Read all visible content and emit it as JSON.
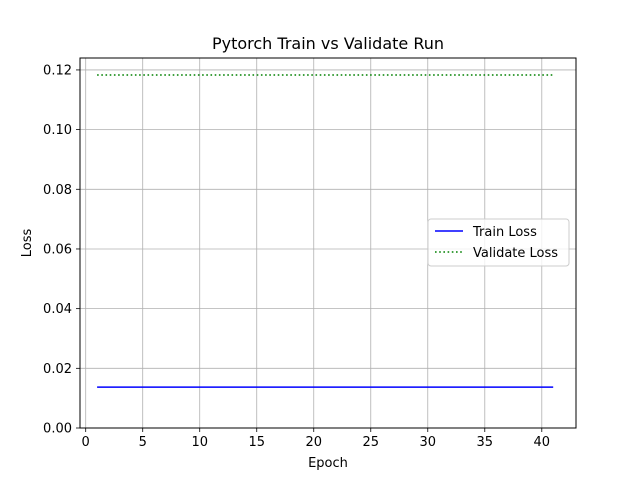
{
  "chart_data": {
    "type": "line",
    "title": "Pytorch Train vs Validate Run",
    "xlabel": "Epoch",
    "ylabel": "Loss",
    "xlim": [
      -0.5,
      43.0
    ],
    "ylim": [
      0.0,
      0.124
    ],
    "xticks": [
      0,
      5,
      10,
      15,
      20,
      25,
      30,
      35,
      40
    ],
    "xtick_labels": [
      "0",
      "5",
      "10",
      "15",
      "20",
      "25",
      "30",
      "35",
      "40"
    ],
    "yticks": [
      0.0,
      0.02,
      0.04,
      0.06,
      0.08,
      0.1,
      0.12
    ],
    "ytick_labels": [
      "0.00",
      "0.02",
      "0.04",
      "0.06",
      "0.08",
      "0.10",
      "0.12"
    ],
    "grid": true,
    "legend_position": "center-right",
    "series": [
      {
        "name": "Train Loss",
        "color": "#0000ff",
        "style": "solid",
        "x": [
          1,
          41
        ],
        "y": [
          0.0137,
          0.0137
        ]
      },
      {
        "name": "Validate Loss",
        "color": "#008000",
        "style": "dotted",
        "x": [
          1,
          41
        ],
        "y": [
          0.1183,
          0.1183
        ]
      }
    ]
  }
}
